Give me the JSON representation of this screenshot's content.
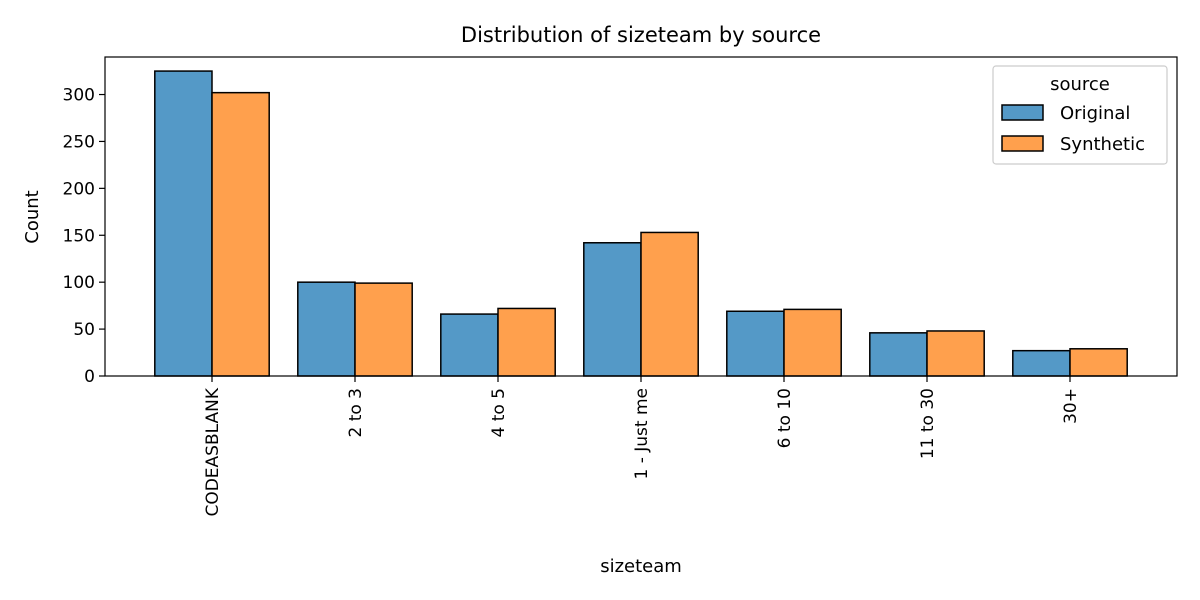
{
  "chart_data": {
    "type": "bar",
    "title": "Distribution of sizeteam by source",
    "xlabel": "sizeteam",
    "ylabel": "Count",
    "categories": [
      "CODEASBLANK",
      "2 to 3",
      "4 to 5",
      "1 - Just me",
      "6 to 10",
      "11 to 30",
      "30+"
    ],
    "series": [
      {
        "name": "Original",
        "color": "#5499c7",
        "values": [
          325,
          100,
          66,
          142,
          69,
          46,
          27
        ]
      },
      {
        "name": "Synthetic",
        "color": "#ffa04d",
        "values": [
          302,
          99,
          72,
          153,
          71,
          48,
          29
        ]
      }
    ],
    "ylim": [
      0,
      340
    ],
    "yticks": [
      0,
      50,
      100,
      150,
      200,
      250,
      300
    ],
    "legend": {
      "title": "source",
      "placement": "top-right"
    },
    "grid": false
  }
}
